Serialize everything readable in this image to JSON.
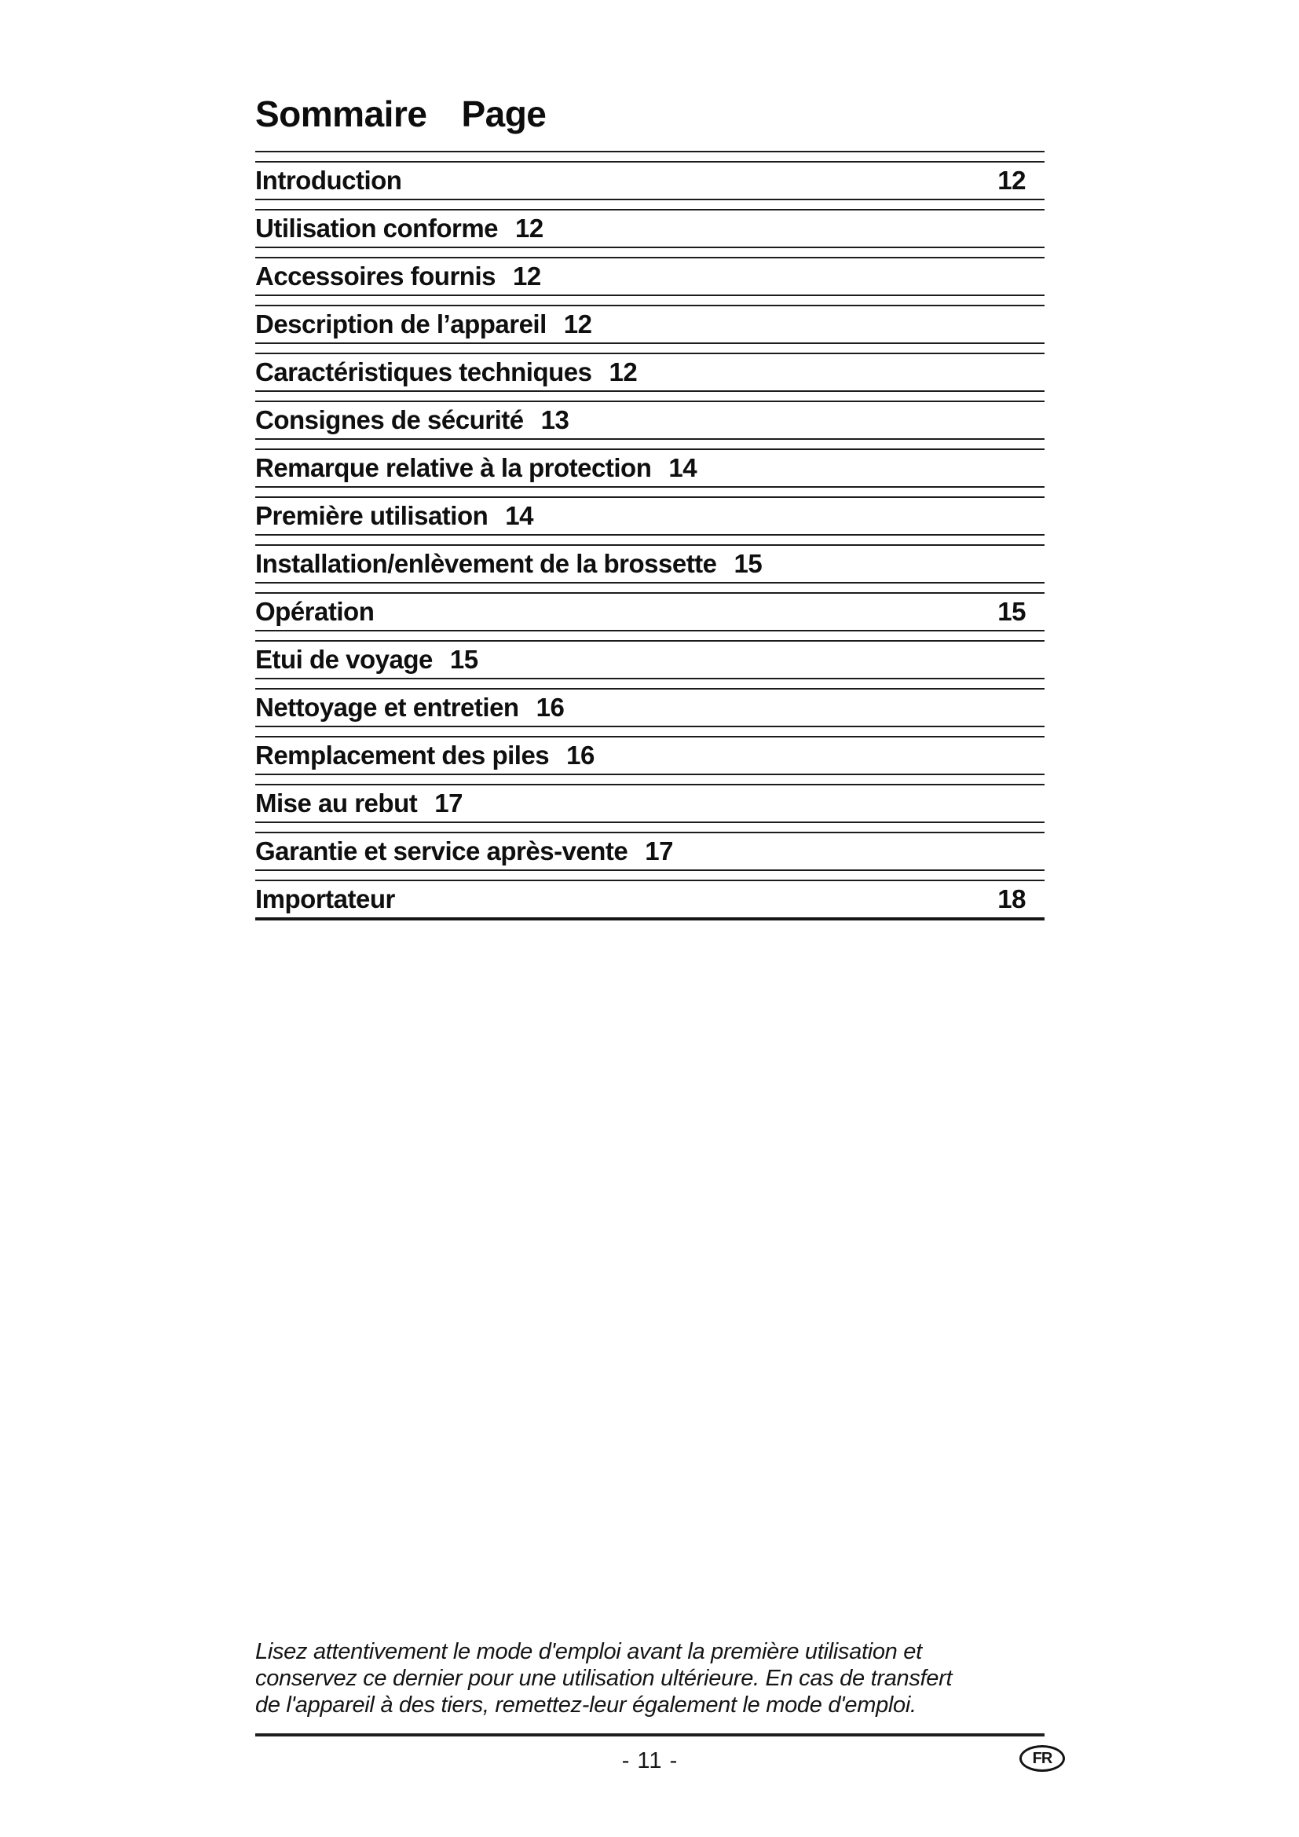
{
  "page": {
    "title": {
      "word1": "Sommaire",
      "word2": "Page"
    },
    "toc": {
      "entries": [
        {
          "label": "Introduction",
          "page": "12",
          "page_align": "right"
        },
        {
          "label": "Utilisation conforme",
          "page": "12",
          "page_align": "inline"
        },
        {
          "label": "Accessoires fournis",
          "page": "12",
          "page_align": "inline"
        },
        {
          "label": "Description de l’appareil",
          "page": "12",
          "page_align": "inline"
        },
        {
          "label": "Caractéristiques techniques",
          "page": "12",
          "page_align": "inline"
        },
        {
          "label": "Consignes de sécurité",
          "page": "13",
          "page_align": "inline"
        },
        {
          "label": "Remarque relative à la protection",
          "page": "14",
          "page_align": "inline"
        },
        {
          "label": "Première utilisation",
          "page": "14",
          "page_align": "inline"
        },
        {
          "label": "Installation/enlèvement de la brossette",
          "page": "15",
          "page_align": "inline"
        },
        {
          "label": "Opération",
          "page": "15",
          "page_align": "right"
        },
        {
          "label": "Etui de voyage",
          "page": "15",
          "page_align": "inline"
        },
        {
          "label": "Nettoyage et entretien",
          "page": "16",
          "page_align": "inline"
        },
        {
          "label": "Remplacement des piles",
          "page": "16",
          "page_align": "inline"
        },
        {
          "label": "Mise au rebut",
          "page": "17",
          "page_align": "inline"
        },
        {
          "label": "Garantie et service après-vente",
          "page": "17",
          "page_align": "inline"
        },
        {
          "label": "Importateur",
          "page": "18",
          "page_align": "right"
        }
      ]
    },
    "footer_note": {
      "lines": [
        "Lisez attentivement le mode d'emploi avant la première utilisation et",
        "conservez ce dernier pour une utilisation ultérieure. En cas de transfert",
        "de l'appareil à des tiers, remettez-leur également le mode d'emploi."
      ]
    },
    "page_number": "- 11 -",
    "language_badge": "FR"
  },
  "colors": {
    "background": "#ffffff",
    "text": "#111111",
    "rule": "#1c1c1c"
  }
}
